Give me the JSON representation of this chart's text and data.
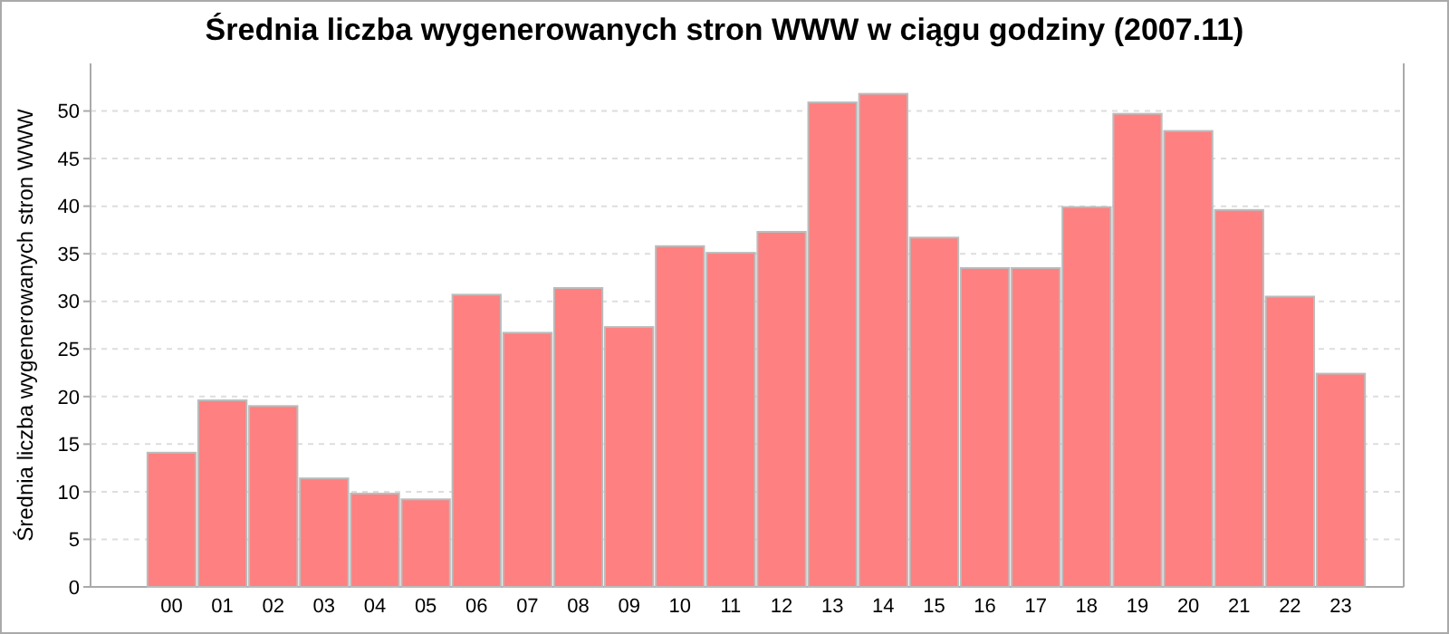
{
  "chart_data": {
    "type": "bar",
    "title": "Średnia liczba wygenerowanych stron WWW w ciągu godziny (2007.11)",
    "ylabel": "Średnia liczba wygenerowanych stron WWW",
    "categories": [
      "00",
      "01",
      "02",
      "03",
      "04",
      "05",
      "06",
      "07",
      "08",
      "09",
      "10",
      "11",
      "12",
      "13",
      "14",
      "15",
      "16",
      "17",
      "18",
      "19",
      "20",
      "21",
      "22",
      "23"
    ],
    "values": [
      14.1,
      19.6,
      19.0,
      11.4,
      9.8,
      9.2,
      30.7,
      26.7,
      31.4,
      27.3,
      35.8,
      35.1,
      37.3,
      50.9,
      51.8,
      36.7,
      33.5,
      33.5,
      39.9,
      49.7,
      47.9,
      39.6,
      30.5,
      22.4
    ],
    "color": "#ff8080",
    "ylim": [
      0,
      55
    ],
    "yticks": [
      0,
      5,
      10,
      15,
      20,
      25,
      30,
      35,
      40,
      45,
      50
    ],
    "grid": "y"
  }
}
